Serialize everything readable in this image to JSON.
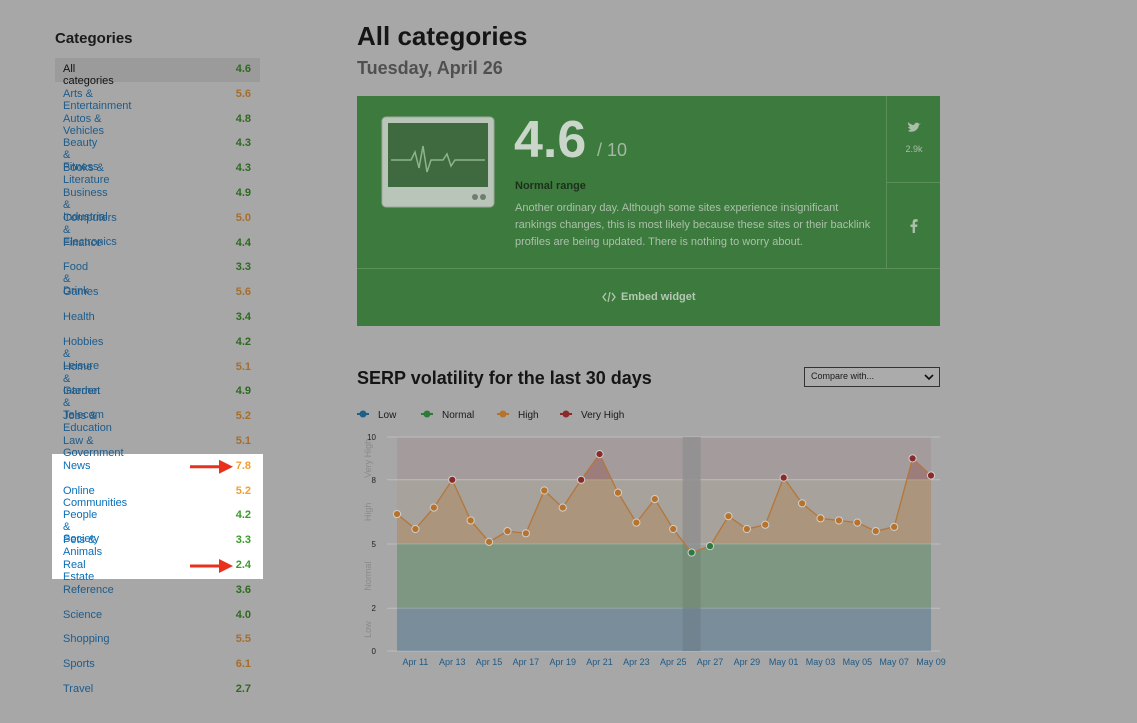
{
  "sidebar": {
    "title": "Categories",
    "items": [
      {
        "name": "All categories",
        "value": "4.6",
        "selected": true
      },
      {
        "name": "Arts & Entertainment",
        "value": "5.6"
      },
      {
        "name": "Autos & Vehicles",
        "value": "4.8"
      },
      {
        "name": "Beauty & Fitness",
        "value": "4.3"
      },
      {
        "name": "Books & Literature",
        "value": "4.3"
      },
      {
        "name": "Business & Industrial",
        "value": "4.9"
      },
      {
        "name": "Computers & Electronics",
        "value": "5.0"
      },
      {
        "name": "Finance",
        "value": "4.4"
      },
      {
        "name": "Food & Drink",
        "value": "3.3"
      },
      {
        "name": "Games",
        "value": "5.6"
      },
      {
        "name": "Health",
        "value": "3.4"
      },
      {
        "name": "Hobbies & Leisure",
        "value": "4.2"
      },
      {
        "name": "Home & Garden",
        "value": "5.1"
      },
      {
        "name": "Internet & Telecom",
        "value": "4.9"
      },
      {
        "name": "Jobs & Education",
        "value": "5.2"
      },
      {
        "name": "Law & Government",
        "value": "5.1"
      },
      {
        "name": "News",
        "value": "7.8",
        "highlight": true,
        "arrow": true
      },
      {
        "name": "Online Communities",
        "value": "5.2",
        "highlight": true
      },
      {
        "name": "People & Society",
        "value": "4.2",
        "highlight": true
      },
      {
        "name": "Pets & Animals",
        "value": "3.3",
        "highlight": true
      },
      {
        "name": "Real Estate",
        "value": "2.4",
        "highlight": true,
        "arrow": true
      },
      {
        "name": "Reference",
        "value": "3.6"
      },
      {
        "name": "Science",
        "value": "4.0"
      },
      {
        "name": "Shopping",
        "value": "5.5"
      },
      {
        "name": "Sports",
        "value": "6.1"
      },
      {
        "name": "Travel",
        "value": "2.7"
      }
    ]
  },
  "header": {
    "title": "All categories",
    "date": "Tuesday, April 26"
  },
  "widget": {
    "score": "4.6",
    "scale": "/ 10",
    "status": "Normal range",
    "description": "Another ordinary day. Although some sites experience insignificant rankings changes, this is most likely because these sites or their backlink profiles are being updated. There is nothing to worry about.",
    "twitter_count": "2.9k",
    "embed": "Embed widget"
  },
  "compare": "Compare with...",
  "chart_data": {
    "type": "line",
    "title": "SERP volatility for the last 30 days",
    "categories": [
      null,
      "Apr 11",
      null,
      "Apr 13",
      null,
      "Apr 15",
      null,
      "Apr 17",
      null,
      "Apr 19",
      null,
      "Apr 21",
      null,
      "Apr 23",
      null,
      "Apr 25",
      null,
      "Apr 27",
      null,
      "Apr 29",
      null,
      "May 01",
      null,
      "May 03",
      null,
      "May 05",
      null,
      "May 07",
      null,
      "May 09"
    ],
    "values": [
      6.4,
      5.7,
      6.7,
      8.0,
      6.1,
      5.1,
      5.6,
      5.5,
      7.5,
      6.7,
      8.0,
      9.2,
      7.4,
      6.0,
      7.1,
      5.7,
      4.6,
      4.9,
      6.3,
      5.7,
      5.9,
      8.1,
      6.9,
      6.2,
      6.1,
      6.0,
      5.6,
      5.8,
      9.0,
      8.2
    ],
    "line_color": "#b5763a",
    "highlight_index": 16,
    "bands": [
      {
        "name": "Low",
        "from": 0,
        "to": 2,
        "color": "#1f5f86"
      },
      {
        "name": "Normal",
        "from": 2,
        "to": 5,
        "color": "#2e7a3a"
      },
      {
        "name": "High",
        "from": 5,
        "to": 8,
        "color": "#b7732b"
      },
      {
        "name": "Very High",
        "from": 8,
        "to": 10,
        "color": "#8b2a2a"
      }
    ],
    "ylim": [
      0,
      10
    ],
    "yticks": [
      0,
      2,
      5,
      8,
      10
    ],
    "grid": true
  }
}
